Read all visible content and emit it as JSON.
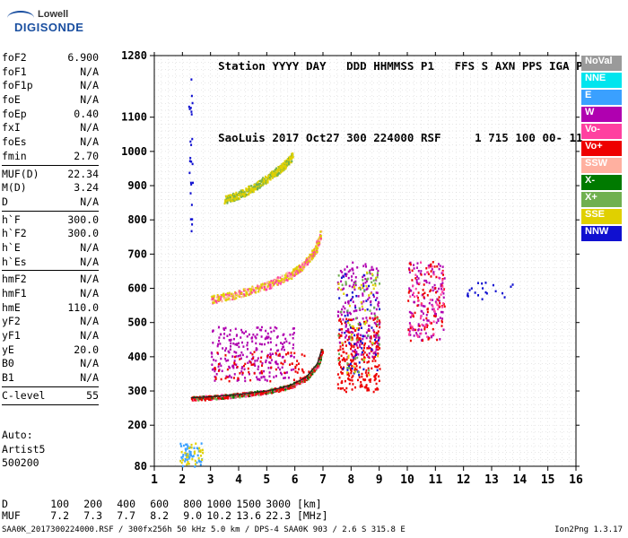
{
  "logo": {
    "line1": "Lowell",
    "line2": "DIGISONDE"
  },
  "header": {
    "labels": [
      "Station",
      "YYYY",
      "DAY",
      "DDD",
      "HHMMSS",
      "P1",
      "FFS",
      "S",
      "AXN",
      "PPS",
      "IGA",
      "PS"
    ],
    "values": [
      "SaoLuis",
      "2017",
      "Oct27",
      "300",
      "224000",
      "RSF",
      "",
      "1",
      "715",
      "100",
      "00-",
      "11"
    ]
  },
  "params": [
    {
      "label": "foF2",
      "value": "6.900"
    },
    {
      "label": "foF1",
      "value": "N/A"
    },
    {
      "label": "foF1p",
      "value": "N/A"
    },
    {
      "label": "foE",
      "value": "N/A"
    },
    {
      "label": "foEp",
      "value": "0.40"
    },
    {
      "label": "fxI",
      "value": "N/A"
    },
    {
      "label": "foEs",
      "value": "N/A"
    },
    {
      "label": "fmin",
      "value": "2.70"
    },
    {
      "sep": true
    },
    {
      "label": "MUF(D)",
      "value": "22.34"
    },
    {
      "label": "M(D)",
      "value": "3.24"
    },
    {
      "label": "D",
      "value": "N/A"
    },
    {
      "sep": true
    },
    {
      "label": "h`F",
      "value": "300.0"
    },
    {
      "label": "h`F2",
      "value": "300.0"
    },
    {
      "label": "h`E",
      "value": "N/A"
    },
    {
      "label": "h`Es",
      "value": "N/A"
    },
    {
      "sep": true
    },
    {
      "label": "hmF2",
      "value": "N/A"
    },
    {
      "label": "hmF1",
      "value": "N/A"
    },
    {
      "label": "hmE",
      "value": "110.0"
    },
    {
      "label": "yF2",
      "value": "N/A"
    },
    {
      "label": "yF1",
      "value": "N/A"
    },
    {
      "label": "yE",
      "value": "20.0"
    },
    {
      "label": "B0",
      "value": "N/A"
    },
    {
      "label": "B1",
      "value": "N/A"
    },
    {
      "sep": true
    },
    {
      "label": "C-level",
      "value": "55"
    },
    {
      "sep": true
    }
  ],
  "auto": {
    "line1": "Auto:",
    "line2": "Artist5",
    "line3": "500200"
  },
  "legend": [
    {
      "label": "NoVal",
      "color": "#9a9a9a"
    },
    {
      "label": "NNE",
      "color": "#00e5ee"
    },
    {
      "label": "E",
      "color": "#3aa0ff"
    },
    {
      "label": "W",
      "color": "#b000b0"
    },
    {
      "label": "Vo-",
      "color": "#ff40a0"
    },
    {
      "label": "Vo+",
      "color": "#ee0000"
    },
    {
      "label": "SSW",
      "color": "#ffb0a0"
    },
    {
      "label": "X-",
      "color": "#007a00"
    },
    {
      "label": "X+",
      "color": "#70b050"
    },
    {
      "label": "SSE",
      "color": "#e0d000"
    },
    {
      "label": "NNW",
      "color": "#1010d0"
    }
  ],
  "dmuf": {
    "d_label": "D",
    "d_values": [
      "100",
      "200",
      "400",
      "600",
      "800",
      "1000",
      "1500",
      "3000"
    ],
    "d_unit": "[km]",
    "muf_label": "MUF",
    "muf_values": [
      "7.2",
      "7.3",
      "7.7",
      "8.2",
      "9.0",
      "10.2",
      "13.6",
      "22.3"
    ],
    "muf_unit": "[MHz]"
  },
  "footer": "SAA0K_2017300224000.RSF / 300fx256h 50 kHz 5.0 km / DPS-4 SAA0K 903 / 2.6 S 315.8 E",
  "version": "Ion2Png 1.3.17",
  "chart_data": {
    "type": "scatter",
    "title": "",
    "xlabel": "",
    "ylabel": "",
    "x_range": [
      1,
      16
    ],
    "x_ticks": [
      1,
      2,
      3,
      4,
      5,
      6,
      7,
      8,
      9,
      10,
      11,
      12,
      13,
      14,
      15,
      16
    ],
    "y_range": [
      80,
      1280
    ],
    "y_ticks": [
      80,
      200,
      300,
      400,
      500,
      600,
      700,
      800,
      900,
      1000,
      1100,
      1280
    ],
    "grid": true,
    "trace_F": {
      "x": [
        2.3,
        3.0,
        4.0,
        5.0,
        5.8,
        6.4,
        6.8,
        6.95
      ],
      "y": [
        280,
        283,
        290,
        300,
        315,
        340,
        380,
        420
      ]
    },
    "trace_2F": {
      "x": [
        3.0,
        4.0,
        5.0,
        5.8,
        6.3,
        6.7,
        6.9
      ],
      "y": [
        570,
        585,
        610,
        640,
        670,
        710,
        760
      ]
    },
    "trace_3F": {
      "x": [
        3.5,
        4.0,
        4.6,
        5.2,
        5.6,
        5.9
      ],
      "y": [
        860,
        875,
        900,
        935,
        960,
        990
      ]
    },
    "clusters": [
      {
        "x": [
          7.5,
          9.0
        ],
        "y": [
          300,
          520
        ],
        "color": "#ee0000",
        "n": 260
      },
      {
        "x": [
          7.5,
          9.0
        ],
        "y": [
          400,
          680
        ],
        "color": "#b000b0",
        "n": 180
      },
      {
        "x": [
          7.5,
          9.0
        ],
        "y": [
          350,
          650
        ],
        "color": "#1010d0",
        "n": 60
      },
      {
        "x": [
          7.5,
          9.0
        ],
        "y": [
          350,
          650
        ],
        "color": "#70b050",
        "n": 50
      },
      {
        "x": [
          7.5,
          9.0
        ],
        "y": [
          350,
          650
        ],
        "color": "#e0d000",
        "n": 40
      },
      {
        "x": [
          10.0,
          11.3
        ],
        "y": [
          450,
          680
        ],
        "color": "#b000b0",
        "n": 120
      },
      {
        "x": [
          10.0,
          11.3
        ],
        "y": [
          450,
          680
        ],
        "color": "#ee0000",
        "n": 80
      },
      {
        "x": [
          10.0,
          11.3
        ],
        "y": [
          450,
          680
        ],
        "color": "#ff40a0",
        "n": 50
      },
      {
        "x": [
          3.0,
          6.0
        ],
        "y": [
          330,
          490
        ],
        "color": "#b000b0",
        "n": 240
      },
      {
        "x": [
          3.0,
          6.5
        ],
        "y": [
          330,
          420
        ],
        "color": "#ee0000",
        "n": 80
      },
      {
        "x": [
          1.9,
          2.7
        ],
        "y": [
          82,
          150
        ],
        "color": "#3aa0ff",
        "n": 50
      },
      {
        "x": [
          1.9,
          2.7
        ],
        "y": [
          82,
          150
        ],
        "color": "#e0d000",
        "n": 30
      },
      {
        "x": [
          12.0,
          13.8
        ],
        "y": [
          570,
          620
        ],
        "color": "#1010d0",
        "n": 20
      },
      {
        "x": [
          2.2,
          2.35
        ],
        "y": [
          750,
          1280
        ],
        "color": "#1010d0",
        "n": 25
      }
    ]
  }
}
